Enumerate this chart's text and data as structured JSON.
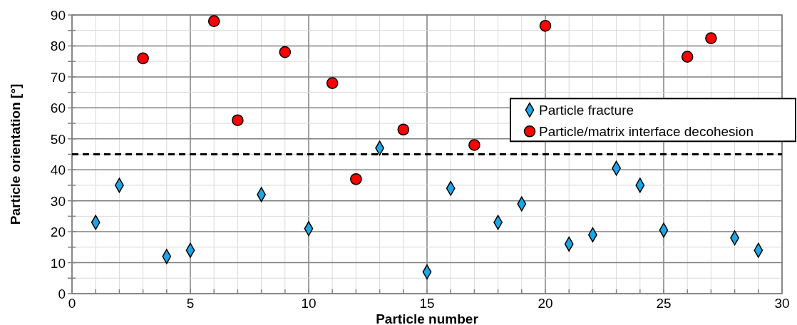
{
  "chart_data": {
    "type": "scatter",
    "xlabel": "Particle number",
    "ylabel": "Particle orientation [°]",
    "xlim": [
      0,
      30
    ],
    "ylim": [
      0,
      90
    ],
    "xticks": [
      0,
      {
        "value": 1,
        "label": null
      },
      {
        "value": 2,
        "label": null
      },
      {
        "value": 3,
        "label": null
      },
      {
        "value": 4,
        "label": null
      },
      5,
      {
        "value": 6,
        "label": null
      },
      {
        "value": 7,
        "label": null
      },
      {
        "value": 8,
        "label": null
      },
      {
        "value": 9,
        "label": null
      },
      10,
      {
        "value": 11,
        "label": null
      },
      {
        "value": 12,
        "label": null
      },
      {
        "value": 13,
        "label": null
      },
      {
        "value": 14,
        "label": null
      },
      15,
      {
        "value": 16,
        "label": null
      },
      {
        "value": 17,
        "label": null
      },
      {
        "value": 18,
        "label": null
      },
      {
        "value": 19,
        "label": null
      },
      20,
      {
        "value": 21,
        "label": null
      },
      {
        "value": 22,
        "label": null
      },
      {
        "value": 23,
        "label": null
      },
      {
        "value": 24,
        "label": null
      },
      25,
      {
        "value": 26,
        "label": null
      },
      {
        "value": 27,
        "label": null
      },
      {
        "value": 28,
        "label": null
      },
      {
        "value": 29,
        "label": null
      },
      30
    ],
    "yticks": [
      0,
      {
        "value": 5,
        "label": null
      },
      10,
      {
        "value": 15,
        "label": null
      },
      20,
      {
        "value": 25,
        "label": null
      },
      30,
      {
        "value": 35,
        "label": null
      },
      40,
      {
        "value": 45,
        "label": null
      },
      50,
      {
        "value": 55,
        "label": null
      },
      60,
      {
        "value": 65,
        "label": null
      },
      70,
      {
        "value": 75,
        "label": null
      },
      80,
      {
        "value": 85,
        "label": null
      },
      90
    ],
    "grid": true,
    "legend": "right",
    "ref_lines": [
      {
        "axis": "y",
        "value": 45,
        "color": "#000000",
        "line_style": "dashed"
      }
    ],
    "series": [
      {
        "name": "Particle fracture",
        "color": "#1aa7e6",
        "marker": "diamond",
        "x": [
          1,
          2,
          4,
          5,
          8,
          10,
          13,
          15,
          16,
          18,
          19,
          21,
          22,
          23,
          24,
          25,
          28,
          29
        ],
        "values": [
          23,
          35,
          12,
          14,
          32,
          21,
          47,
          7,
          34,
          23,
          29,
          16,
          19,
          40.5,
          35,
          20.5,
          18,
          14
        ]
      },
      {
        "name": "Particle/matrix interface decohesion",
        "color": "#ff0000",
        "marker": "circle",
        "x": [
          3,
          6,
          7,
          9,
          11,
          12,
          14,
          17,
          20,
          26,
          27
        ],
        "values": [
          76,
          88,
          56,
          78,
          68,
          37,
          53,
          48,
          86.5,
          76.5,
          82.5
        ]
      }
    ]
  }
}
